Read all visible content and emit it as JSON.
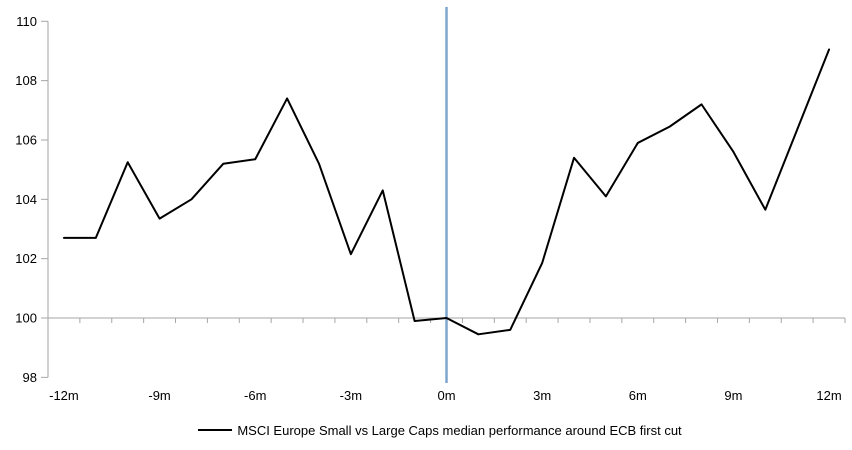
{
  "chart_data": {
    "type": "line",
    "title": "",
    "xlabel": "",
    "ylabel": "",
    "x": [
      -12,
      -11,
      -10,
      -9,
      -8,
      -7,
      -6,
      -5,
      -4,
      -3,
      -2,
      -1,
      0,
      1,
      2,
      3,
      4,
      5,
      6,
      7,
      8,
      9,
      10,
      11,
      12
    ],
    "series": [
      {
        "name": "MSCI Europe Small vs Large Caps median performance around ECB first cut",
        "color": "#000000",
        "values": [
          102.7,
          102.7,
          105.25,
          103.35,
          104.0,
          105.2,
          105.35,
          107.4,
          105.2,
          102.15,
          104.3,
          99.9,
          100.0,
          99.45,
          99.6,
          101.85,
          105.4,
          104.1,
          105.9,
          106.45,
          107.2,
          105.6,
          103.65,
          106.35,
          109.05
        ]
      }
    ],
    "ylim": [
      98,
      110
    ],
    "y_ticks": [
      98,
      100,
      102,
      104,
      106,
      108,
      110
    ],
    "x_tick_labels": [
      "-12m",
      "-9m",
      "-6m",
      "-3m",
      "0m",
      "3m",
      "6m",
      "9m",
      "12m"
    ],
    "x_tick_months": [
      -12,
      -9,
      -6,
      -3,
      0,
      3,
      6,
      9,
      12
    ],
    "grid": "baseline-at-100-only",
    "legend_position": "bottom",
    "annotations": [
      {
        "type": "vline",
        "x": 0,
        "color": "#7EA6CD",
        "meaning": "ECB first cut (event date)"
      },
      {
        "type": "hline",
        "y": 100,
        "color": "#A6A6A6",
        "meaning": "index baseline = 100"
      }
    ]
  },
  "colors": {
    "series_line": "#000000",
    "event_line": "#7EA6CD",
    "axis": "#A6A6A6",
    "baseline": "#A6A6A6",
    "text": "#000000",
    "background": "#FFFFFF"
  },
  "legend": {
    "label": "MSCI Europe Small vs Large Caps median performance around ECB first cut"
  }
}
